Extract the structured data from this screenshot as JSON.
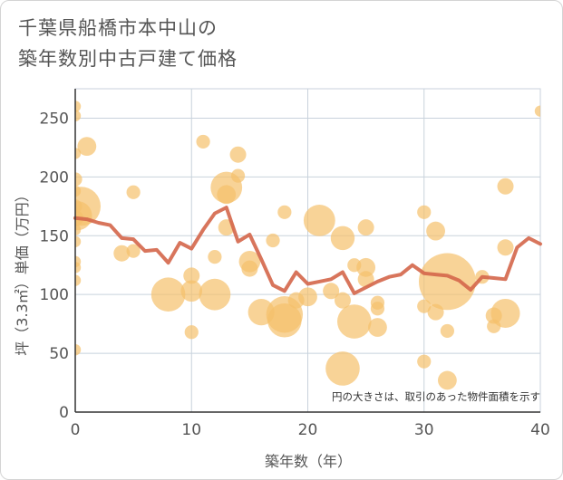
{
  "chart_data": {
    "type": "scatter",
    "title_lines": [
      "千葉県船橋市本中山の",
      "築年数別中古戸建て価格"
    ],
    "xlabel": "築年数（年）",
    "ylabel": "坪（3.3㎡）単価（万円）",
    "xlim": [
      0,
      40
    ],
    "ylim": [
      0,
      275
    ],
    "xticks": [
      0,
      10,
      20,
      30,
      40
    ],
    "yticks": [
      0,
      50,
      100,
      150,
      200,
      250
    ],
    "note": "円の大きさは、取引のあった物件面積を示す",
    "colors": {
      "bubble": "#f5c06b",
      "line": "#d4664a",
      "grid": "#c8d2dc",
      "text": "#555555"
    },
    "bubbles": [
      {
        "x": 0,
        "y": 260,
        "s": 3
      },
      {
        "x": 0,
        "y": 252,
        "s": 3
      },
      {
        "x": 0,
        "y": 220,
        "s": 3
      },
      {
        "x": 0,
        "y": 198,
        "s": 4
      },
      {
        "x": 0,
        "y": 188,
        "s": 3
      },
      {
        "x": 0,
        "y": 175,
        "s": 4
      },
      {
        "x": 0,
        "y": 165,
        "s": 5
      },
      {
        "x": 0,
        "y": 155,
        "s": 3
      },
      {
        "x": 0,
        "y": 145,
        "s": 3
      },
      {
        "x": 0,
        "y": 128,
        "s": 3
      },
      {
        "x": 0,
        "y": 123,
        "s": 3
      },
      {
        "x": 0,
        "y": 112,
        "s": 3
      },
      {
        "x": 0,
        "y": 53,
        "s": 3
      },
      {
        "x": 1,
        "y": 226,
        "s": 6
      },
      {
        "x": 0.5,
        "y": 175,
        "s": 14
      },
      {
        "x": 0.2,
        "y": 167,
        "s": 10
      },
      {
        "x": 4,
        "y": 135,
        "s": 5
      },
      {
        "x": 5,
        "y": 187,
        "s": 4
      },
      {
        "x": 5,
        "y": 137,
        "s": 4
      },
      {
        "x": 8,
        "y": 100,
        "s": 12
      },
      {
        "x": 10,
        "y": 116,
        "s": 5
      },
      {
        "x": 10,
        "y": 103,
        "s": 7
      },
      {
        "x": 10,
        "y": 68,
        "s": 4
      },
      {
        "x": 11,
        "y": 230,
        "s": 4
      },
      {
        "x": 12,
        "y": 100,
        "s": 11
      },
      {
        "x": 12,
        "y": 132,
        "s": 4
      },
      {
        "x": 13,
        "y": 191,
        "s": 11
      },
      {
        "x": 13,
        "y": 185,
        "s": 6
      },
      {
        "x": 13,
        "y": 157,
        "s": 5
      },
      {
        "x": 14,
        "y": 219,
        "s": 5
      },
      {
        "x": 14,
        "y": 201,
        "s": 4
      },
      {
        "x": 15,
        "y": 128,
        "s": 7
      },
      {
        "x": 15,
        "y": 122,
        "s": 5
      },
      {
        "x": 16,
        "y": 85,
        "s": 9
      },
      {
        "x": 17,
        "y": 146,
        "s": 4
      },
      {
        "x": 18,
        "y": 170,
        "s": 4
      },
      {
        "x": 18,
        "y": 83,
        "s": 13
      },
      {
        "x": 18,
        "y": 78,
        "s": 12
      },
      {
        "x": 19,
        "y": 95,
        "s": 5
      },
      {
        "x": 20,
        "y": 98,
        "s": 6
      },
      {
        "x": 21,
        "y": 163,
        "s": 11
      },
      {
        "x": 22,
        "y": 103,
        "s": 5
      },
      {
        "x": 23,
        "y": 148,
        "s": 8
      },
      {
        "x": 23,
        "y": 95,
        "s": 5
      },
      {
        "x": 23,
        "y": 37,
        "s": 12
      },
      {
        "x": 24,
        "y": 77,
        "s": 12
      },
      {
        "x": 24,
        "y": 125,
        "s": 4
      },
      {
        "x": 25,
        "y": 157,
        "s": 5
      },
      {
        "x": 25,
        "y": 123,
        "s": 6
      },
      {
        "x": 25,
        "y": 113,
        "s": 5
      },
      {
        "x": 26,
        "y": 93,
        "s": 4
      },
      {
        "x": 26,
        "y": 72,
        "s": 6
      },
      {
        "x": 26,
        "y": 88,
        "s": 4
      },
      {
        "x": 30,
        "y": 170,
        "s": 4
      },
      {
        "x": 30,
        "y": 90,
        "s": 4
      },
      {
        "x": 30,
        "y": 43,
        "s": 4
      },
      {
        "x": 31,
        "y": 154,
        "s": 6
      },
      {
        "x": 31,
        "y": 85,
        "s": 5
      },
      {
        "x": 32,
        "y": 111,
        "s": 21
      },
      {
        "x": 32,
        "y": 69,
        "s": 4
      },
      {
        "x": 32,
        "y": 27,
        "s": 6
      },
      {
        "x": 35,
        "y": 115,
        "s": 4
      },
      {
        "x": 36,
        "y": 82,
        "s": 5
      },
      {
        "x": 36,
        "y": 73,
        "s": 4
      },
      {
        "x": 37,
        "y": 192,
        "s": 5
      },
      {
        "x": 37,
        "y": 140,
        "s": 5
      },
      {
        "x": 37,
        "y": 84,
        "s": 10
      },
      {
        "x": 40,
        "y": 256,
        "s": 3
      }
    ],
    "trend": {
      "x": [
        0,
        1,
        2,
        3,
        4,
        5,
        6,
        7,
        8,
        9,
        10,
        11,
        12,
        13,
        14,
        15,
        16,
        17,
        18,
        19,
        20,
        21,
        22,
        23,
        24,
        25,
        26,
        27,
        28,
        29,
        30,
        31,
        32,
        33,
        34,
        35,
        36,
        37,
        38,
        39,
        40
      ],
      "y": [
        165,
        164,
        161,
        159,
        148,
        147,
        137,
        138,
        127,
        144,
        139,
        155,
        169,
        174,
        145,
        151,
        130,
        108,
        103,
        119,
        109,
        111,
        113,
        119,
        101,
        106,
        111,
        115,
        117,
        125,
        118,
        117,
        116,
        112,
        104,
        115,
        114,
        113,
        140,
        148,
        143
      ]
    }
  }
}
